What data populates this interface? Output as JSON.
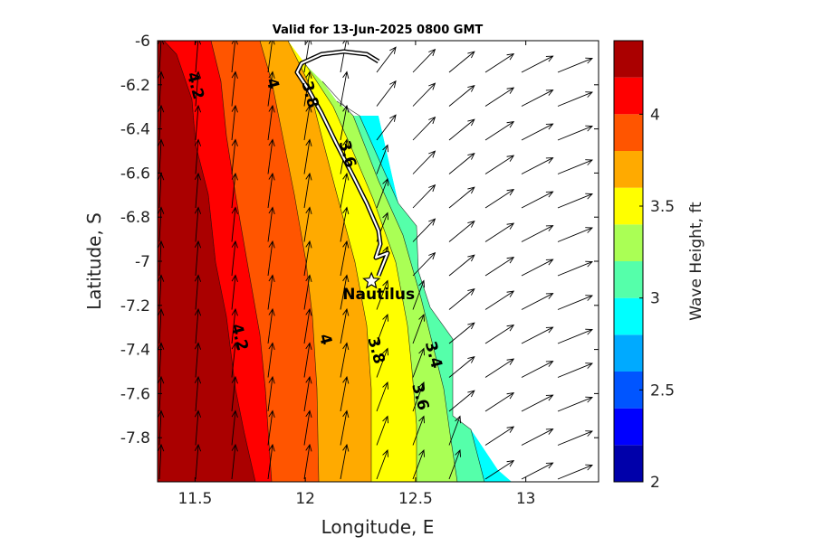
{
  "title": "Valid for 13-Jun-2025 0800 GMT",
  "map": {
    "xlabel": "Longitude, E",
    "ylabel": "Latitude, S",
    "xlim": [
      11.33,
      13.33
    ],
    "ylim": [
      -8.0,
      -6.0
    ],
    "x_ticks": [
      {
        "value": 11.5,
        "label": "11.5"
      },
      {
        "value": 12.0,
        "label": "12"
      },
      {
        "value": 12.5,
        "label": "12.5"
      },
      {
        "value": 13.0,
        "label": "13"
      }
    ],
    "y_ticks": [
      {
        "value": -6.0,
        "label": "-6"
      },
      {
        "value": -6.2,
        "label": "-6.2"
      },
      {
        "value": -6.4,
        "label": "-6.4"
      },
      {
        "value": -6.6,
        "label": "-6.6"
      },
      {
        "value": -6.8,
        "label": "-6.8"
      },
      {
        "value": -7.0,
        "label": "-7"
      },
      {
        "value": -7.2,
        "label": "-7.2"
      },
      {
        "value": -7.4,
        "label": "-7.4"
      },
      {
        "value": -7.6,
        "label": "-7.6"
      },
      {
        "value": -7.8,
        "label": "-7.8"
      }
    ]
  },
  "colorbar": {
    "label": "Wave Height, ft",
    "range": [
      2.0,
      4.4
    ],
    "levels": [
      2.0,
      2.2,
      2.4,
      2.6,
      2.8,
      3.0,
      3.2,
      3.4,
      3.6,
      3.8,
      4.0,
      4.2,
      4.4
    ],
    "colors": [
      "#0000aa",
      "#0000ff",
      "#0055ff",
      "#00aaff",
      "#00ffff",
      "#55ffaa",
      "#aaff55",
      "#ffff00",
      "#ffaa00",
      "#ff5500",
      "#ff0000",
      "#aa0000"
    ],
    "ticks": [
      {
        "value": 2.0,
        "label": "2"
      },
      {
        "value": 2.5,
        "label": "2.5"
      },
      {
        "value": 3.0,
        "label": "3"
      },
      {
        "value": 3.5,
        "label": "3.5"
      },
      {
        "value": 4.0,
        "label": "4"
      }
    ]
  },
  "contour_labels": [
    {
      "text": "4.2",
      "lon": 11.48,
      "lat": -6.21
    },
    {
      "text": "4",
      "lon": 11.83,
      "lat": -6.2
    },
    {
      "text": "3.8",
      "lon": 12.0,
      "lat": -6.25
    },
    {
      "text": "3.6",
      "lon": 12.17,
      "lat": -6.52
    },
    {
      "text": "4.2",
      "lon": 11.68,
      "lat": -7.35
    },
    {
      "text": "4",
      "lon": 12.07,
      "lat": -7.36
    },
    {
      "text": "3.8",
      "lon": 12.3,
      "lat": -7.41
    },
    {
      "text": "3.4",
      "lon": 12.56,
      "lat": -7.43
    },
    {
      "text": "3.6",
      "lon": 12.5,
      "lat": -7.62
    }
  ],
  "station": {
    "name": "Nautilus",
    "lon": 12.3,
    "lat": -7.09
  },
  "colors": {
    "track": "#ffffff",
    "track_edge": "#000000",
    "arrows": "#000000",
    "axes": "#000000",
    "land": "#ffffff"
  }
}
